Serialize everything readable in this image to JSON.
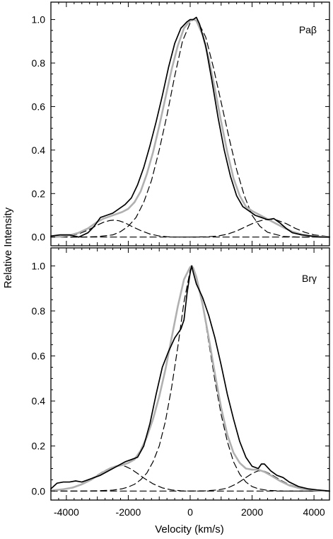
{
  "chart_data": {
    "type": "line",
    "xlabel": "Velocity (km/s)",
    "ylabel": "Relative Intensity",
    "xlim": [
      -4500,
      4500
    ],
    "xticks": [
      -4000,
      -2000,
      0,
      2000,
      4000
    ],
    "xtick_labels": [
      "-4000",
      "-2000",
      "0",
      "2000",
      "4000"
    ],
    "panels": [
      {
        "label": "Paβ",
        "ylim": [
          -0.04,
          1.08
        ],
        "yticks": [
          0.0,
          0.2,
          0.4,
          0.6,
          0.8,
          1.0
        ],
        "ytick_labels": [
          "0.0",
          "0.2",
          "0.4",
          "0.6",
          "0.8",
          "1.0"
        ],
        "series": [
          {
            "role": "observed",
            "style": "solid",
            "color": "#000000",
            "x": [
              -4500,
              -4200,
              -3900,
              -3600,
              -3300,
              -3100,
              -2900,
              -2700,
              -2500,
              -2300,
              -2100,
              -1900,
              -1700,
              -1500,
              -1300,
              -1100,
              -900,
              -700,
              -500,
              -300,
              -100,
              0,
              100,
              200,
              300,
              500,
              700,
              900,
              1100,
              1300,
              1500,
              1700,
              1900,
              2100,
              2300,
              2500,
              2700,
              2900,
              3100,
              3300,
              3600,
              3900,
              4200,
              4500
            ],
            "y": [
              0.005,
              0.01,
              0.01,
              0.0,
              0.02,
              0.05,
              0.09,
              0.1,
              0.11,
              0.13,
              0.15,
              0.18,
              0.24,
              0.32,
              0.42,
              0.53,
              0.65,
              0.78,
              0.89,
              0.96,
              0.99,
              1.0,
              1.0,
              1.01,
              0.98,
              0.88,
              0.72,
              0.55,
              0.4,
              0.28,
              0.19,
              0.14,
              0.12,
              0.1,
              0.09,
              0.08,
              0.085,
              0.065,
              0.04,
              0.02,
              0.01,
              0.005,
              0.0,
              0.0
            ]
          },
          {
            "role": "total-fit",
            "style": "solid",
            "color": "#b0b0b0",
            "x": [
              -4500,
              -4200,
              -3900,
              -3600,
              -3300,
              -3000,
              -2800,
              -2600,
              -2400,
              -2200,
              -2000,
              -1800,
              -1600,
              -1400,
              -1200,
              -1000,
              -800,
              -600,
              -400,
              -200,
              0,
              100,
              200,
              400,
              600,
              800,
              1000,
              1200,
              1400,
              1600,
              1800,
              2000,
              2200,
              2400,
              2600,
              2800,
              3000,
              3300,
              3600,
              3900,
              4200,
              4500
            ],
            "y": [
              0.0,
              0.002,
              0.008,
              0.02,
              0.04,
              0.07,
              0.085,
              0.095,
              0.105,
              0.115,
              0.13,
              0.16,
              0.21,
              0.29,
              0.39,
              0.51,
              0.64,
              0.77,
              0.88,
              0.96,
              0.995,
              1.0,
              0.995,
              0.93,
              0.82,
              0.68,
              0.53,
              0.39,
              0.27,
              0.19,
              0.14,
              0.12,
              0.105,
              0.09,
              0.075,
              0.06,
              0.045,
              0.025,
              0.012,
              0.005,
              0.002,
              0.0
            ]
          },
          {
            "role": "central-component",
            "style": "dashed",
            "color": "#000000",
            "x": [
              -4500,
              -4000,
              -3500,
              -3000,
              -2500,
              -2250,
              -2000,
              -1750,
              -1500,
              -1250,
              -1000,
              -750,
              -500,
              -250,
              0,
              100,
              250,
              500,
              750,
              1000,
              1250,
              1500,
              1750,
              2000,
              2250,
              2500,
              3000,
              3500,
              4000,
              4500
            ],
            "y": [
              0.0,
              0.0,
              0.0,
              0.002,
              0.01,
              0.025,
              0.05,
              0.09,
              0.16,
              0.26,
              0.4,
              0.56,
              0.74,
              0.9,
              0.985,
              1.0,
              0.99,
              0.92,
              0.78,
              0.62,
              0.46,
              0.31,
              0.19,
              0.1,
              0.05,
              0.022,
              0.003,
              0.0,
              0.0,
              0.0
            ]
          },
          {
            "role": "blue-component",
            "style": "dashed",
            "color": "#000000",
            "x": [
              -4500,
              -4000,
              -3600,
              -3300,
              -3000,
              -2800,
              -2600,
              -2450,
              -2300,
              -2100,
              -1900,
              -1600,
              -1300,
              -1000,
              -700,
              -400,
              0,
              500,
              1000,
              2000,
              3000,
              4500
            ],
            "y": [
              0.0,
              0.003,
              0.015,
              0.032,
              0.055,
              0.068,
              0.076,
              0.078,
              0.075,
              0.065,
              0.05,
              0.03,
              0.014,
              0.005,
              0.001,
              0.0,
              0.0,
              0.0,
              0.0,
              0.0,
              0.0,
              0.0
            ]
          },
          {
            "role": "red-component",
            "style": "dashed",
            "color": "#000000",
            "x": [
              -4500,
              -3000,
              -2000,
              -1000,
              0,
              500,
              900,
              1200,
              1500,
              1800,
              2100,
              2400,
              2600,
              2800,
              3100,
              3400,
              3700,
              4000,
              4500
            ],
            "y": [
              0.0,
              0.0,
              0.0,
              0.0,
              0.0,
              0.001,
              0.005,
              0.013,
              0.028,
              0.048,
              0.068,
              0.08,
              0.082,
              0.078,
              0.062,
              0.04,
              0.022,
              0.01,
              0.002
            ]
          }
        ]
      },
      {
        "label": "Brγ",
        "ylim": [
          -0.04,
          1.08
        ],
        "yticks": [
          0.0,
          0.2,
          0.4,
          0.6,
          0.8,
          1.0
        ],
        "ytick_labels": [
          "0.0",
          "0.2",
          "0.4",
          "0.6",
          "0.8",
          "1.0"
        ],
        "series": [
          {
            "role": "observed",
            "style": "solid",
            "color": "#000000",
            "x": [
              -4500,
              -4300,
              -4100,
              -3900,
              -3700,
              -3500,
              -3300,
              -3100,
              -2900,
              -2700,
              -2500,
              -2300,
              -2100,
              -1900,
              -1700,
              -1500,
              -1300,
              -1100,
              -900,
              -700,
              -500,
              -300,
              -200,
              -100,
              0,
              50,
              100,
              200,
              400,
              600,
              800,
              1000,
              1200,
              1400,
              1600,
              1800,
              2000,
              2200,
              2300,
              2400,
              2600,
              2800,
              3000,
              3200,
              3500,
              3800,
              4100,
              4500
            ],
            "y": [
              0.01,
              0.035,
              0.04,
              0.04,
              0.045,
              0.04,
              0.05,
              0.06,
              0.07,
              0.085,
              0.1,
              0.115,
              0.13,
              0.14,
              0.15,
              0.2,
              0.3,
              0.43,
              0.55,
              0.62,
              0.68,
              0.72,
              0.76,
              0.88,
              0.97,
              1.0,
              0.97,
              0.92,
              0.86,
              0.78,
              0.68,
              0.56,
              0.43,
              0.32,
              0.22,
              0.15,
              0.11,
              0.1,
              0.12,
              0.12,
              0.09,
              0.07,
              0.06,
              0.04,
              0.02,
              0.01,
              0.005,
              0.0
            ]
          },
          {
            "role": "total-fit",
            "style": "solid",
            "color": "#b0b0b0",
            "x": [
              -4500,
              -4100,
              -3800,
              -3500,
              -3200,
              -3000,
              -2800,
              -2600,
              -2400,
              -2200,
              -2000,
              -1800,
              -1600,
              -1400,
              -1200,
              -1000,
              -800,
              -600,
              -400,
              -200,
              0,
              50,
              100,
              200,
              400,
              600,
              800,
              1000,
              1200,
              1400,
              1600,
              1800,
              2000,
              2200,
              2400,
              2600,
              2900,
              3200,
              3600,
              4000,
              4500
            ],
            "y": [
              0.002,
              0.008,
              0.015,
              0.03,
              0.05,
              0.068,
              0.085,
              0.1,
              0.11,
              0.115,
              0.125,
              0.14,
              0.18,
              0.24,
              0.32,
              0.42,
              0.54,
              0.68,
              0.82,
              0.94,
              0.995,
              1.0,
              0.99,
              0.95,
              0.83,
              0.68,
              0.52,
              0.37,
              0.25,
              0.17,
              0.125,
              0.1,
              0.095,
              0.095,
              0.085,
              0.07,
              0.045,
              0.025,
              0.01,
              0.004,
              0.0
            ]
          },
          {
            "role": "central-component",
            "style": "dashed",
            "color": "#000000",
            "x": [
              -4500,
              -3500,
              -3000,
              -2500,
              -2200,
              -2000,
              -1800,
              -1600,
              -1400,
              -1200,
              -1000,
              -800,
              -600,
              -400,
              -200,
              0,
              50,
              100,
              200,
              400,
              600,
              800,
              1000,
              1200,
              1400,
              1600,
              1800,
              2000,
              2200,
              2500,
              3000,
              3500,
              4500
            ],
            "y": [
              0.0,
              0.0,
              0.001,
              0.004,
              0.01,
              0.018,
              0.03,
              0.05,
              0.08,
              0.13,
              0.2,
              0.31,
              0.46,
              0.64,
              0.84,
              0.98,
              1.0,
              0.99,
              0.95,
              0.83,
              0.66,
              0.49,
              0.34,
              0.22,
              0.13,
              0.075,
              0.04,
              0.02,
              0.01,
              0.003,
              0.0,
              0.0,
              0.0
            ]
          },
          {
            "role": "blue-component",
            "style": "dashed",
            "color": "#000000",
            "x": [
              -4500,
              -4100,
              -3700,
              -3400,
              -3100,
              -2800,
              -2500,
              -2300,
              -2100,
              -1900,
              -1700,
              -1500,
              -1200,
              -900,
              -600,
              -300,
              0,
              1000,
              2000,
              3000,
              4500
            ],
            "y": [
              0.002,
              0.008,
              0.02,
              0.038,
              0.062,
              0.088,
              0.108,
              0.114,
              0.11,
              0.097,
              0.078,
              0.058,
              0.032,
              0.014,
              0.005,
              0.001,
              0.0,
              0.0,
              0.0,
              0.0,
              0.0
            ]
          },
          {
            "role": "red-component",
            "style": "dashed",
            "color": "#000000",
            "x": [
              -4500,
              -3000,
              -2000,
              -1000,
              0,
              500,
              900,
              1200,
              1500,
              1800,
              2000,
              2200,
              2400,
              2600,
              2900,
              3200,
              3600,
              4000,
              4500
            ],
            "y": [
              0.0,
              0.0,
              0.0,
              0.0,
              0.0,
              0.001,
              0.005,
              0.013,
              0.032,
              0.06,
              0.078,
              0.09,
              0.088,
              0.075,
              0.05,
              0.028,
              0.012,
              0.004,
              0.0
            ]
          }
        ]
      }
    ]
  }
}
